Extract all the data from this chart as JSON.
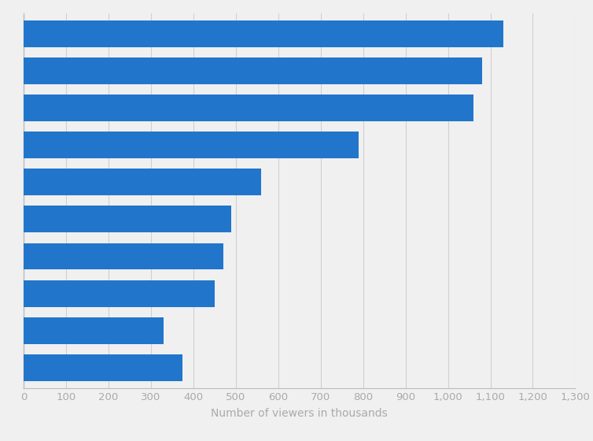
{
  "values": [
    1130,
    1080,
    1060,
    790,
    560,
    490,
    470,
    450,
    330,
    375
  ],
  "bar_color": "#2176cc",
  "background_color": "#f0f0f0",
  "xlabel": "Number of viewers in thousands",
  "xlabel_color": "#aaaaaa",
  "xlabel_fontsize": 10,
  "xlim": [
    0,
    1300
  ],
  "xticks": [
    0,
    100,
    200,
    300,
    400,
    500,
    600,
    700,
    800,
    900,
    1000,
    1100,
    1200,
    1300
  ],
  "xtick_labels": [
    "0",
    "100",
    "200",
    "300",
    "400",
    "500",
    "600",
    "700",
    "800",
    "900",
    "1,000",
    "1,100",
    "1,200",
    "1,300"
  ],
  "grid_color": "#d0d0d0",
  "bar_height": 0.72,
  "tick_color": "#aaaaaa",
  "tick_fontsize": 9.5
}
